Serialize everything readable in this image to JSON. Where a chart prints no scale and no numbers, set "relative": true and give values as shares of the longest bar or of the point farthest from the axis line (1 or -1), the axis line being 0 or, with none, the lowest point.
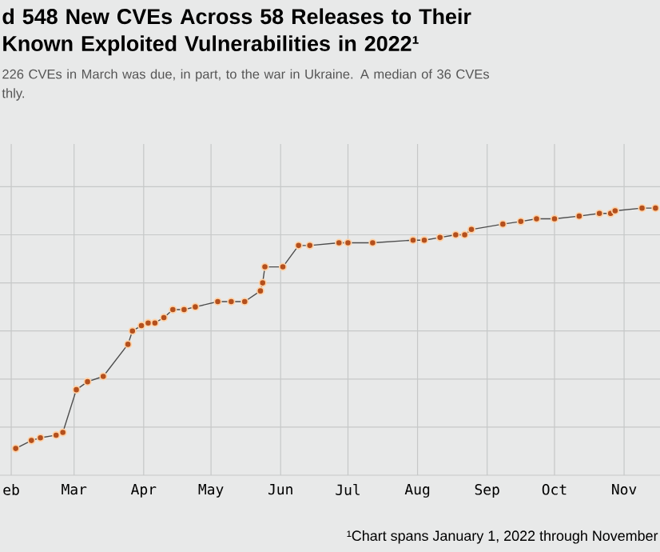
{
  "chart_data": {
    "type": "line",
    "title": "d 548 New CVEs Across 58 Releases to Their Known Exploited Vulnerabilities in 2022¹",
    "subtitle": "226 CVEs in March was due, in part, to the war in Ukraine. A median of 36 CVEs thly.",
    "annotations": [
      "¹Chart spans January 1, 2022 through November"
    ],
    "relative": true,
    "grid": true,
    "marker": "circle",
    "line_style": "solid",
    "xlim": [
      "2022-01-27",
      "2022-11-17"
    ],
    "xticks": [
      {
        "value": "2022-02-01",
        "label": "eb"
      },
      {
        "value": "2022-03-01",
        "label": "Mar"
      },
      {
        "value": "2022-04-01",
        "label": "Apr"
      },
      {
        "value": "2022-05-01",
        "label": "May"
      },
      {
        "value": "2022-06-01",
        "label": "Jun"
      },
      {
        "value": "2022-07-01",
        "label": "Jul"
      },
      {
        "value": "2022-08-01",
        "label": "Aug"
      },
      {
        "value": "2022-09-01",
        "label": "Sep"
      },
      {
        "value": "2022-10-01",
        "label": "Oct"
      },
      {
        "value": "2022-11-01",
        "label": "Nov"
      }
    ],
    "x": [
      "2022-02-03",
      "2022-02-10",
      "2022-02-14",
      "2022-02-21",
      "2022-02-24",
      "2022-03-02",
      "2022-03-07",
      "2022-03-14",
      "2022-03-25",
      "2022-03-27",
      "2022-03-31",
      "2022-04-03",
      "2022-04-06",
      "2022-04-10",
      "2022-04-14",
      "2022-04-19",
      "2022-04-24",
      "2022-05-04",
      "2022-05-10",
      "2022-05-16",
      "2022-05-23",
      "2022-05-24",
      "2022-05-25",
      "2022-06-02",
      "2022-06-09",
      "2022-06-14",
      "2022-06-27",
      "2022-07-01",
      "2022-07-12",
      "2022-07-30",
      "2022-08-04",
      "2022-08-11",
      "2022-08-18",
      "2022-08-22",
      "2022-08-25",
      "2022-09-08",
      "2022-09-16",
      "2022-09-23",
      "2022-10-01",
      "2022-10-12",
      "2022-10-21",
      "2022-10-26",
      "2022-10-28",
      "2022-11-09",
      "2022-11-15"
    ],
    "series": [
      {
        "color": "#b4501e",
        "values": [
          0.1,
          0.13,
          0.14,
          0.15,
          0.16,
          0.32,
          0.35,
          0.37,
          0.49,
          0.54,
          0.56,
          0.57,
          0.57,
          0.59,
          0.62,
          0.62,
          0.63,
          0.65,
          0.65,
          0.65,
          0.69,
          0.72,
          0.78,
          0.78,
          0.86,
          0.86,
          0.87,
          0.87,
          0.87,
          0.88,
          0.88,
          0.89,
          0.9,
          0.9,
          0.92,
          0.94,
          0.95,
          0.96,
          0.96,
          0.97,
          0.98,
          0.98,
          0.99,
          1.0,
          1.0
        ]
      }
    ]
  }
}
